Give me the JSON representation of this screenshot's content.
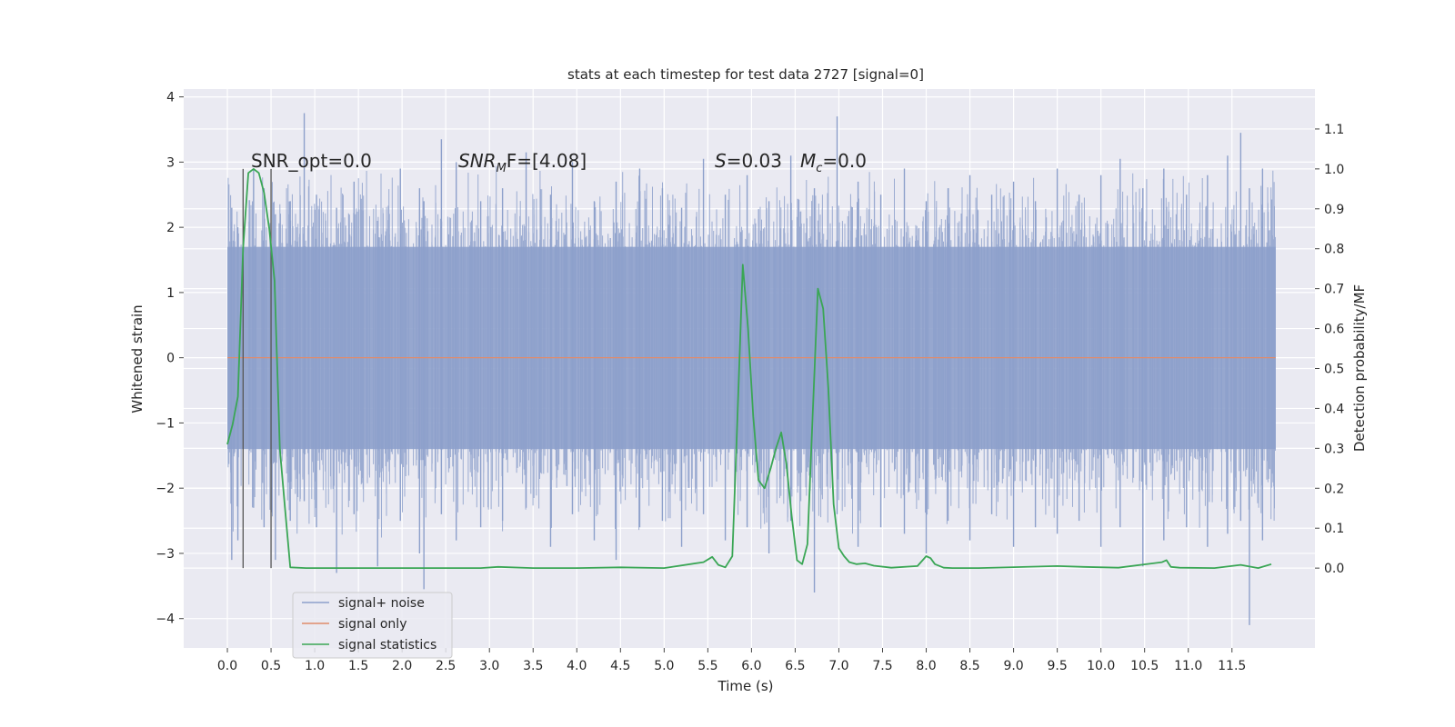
{
  "chart_data": {
    "type": "line",
    "title": "stats at each timestep for test data 2727 [signal=0]",
    "xlabel": "Time (s)",
    "ylabel": "Whitened strain",
    "ylabel_right": "Detection probability/MF",
    "xlim": [
      -0.5,
      12.45
    ],
    "ylim": [
      -4.45,
      4.12
    ],
    "ylim_right": [
      -0.2,
      1.2
    ],
    "x_ticks": [
      "0.0",
      "0.5",
      "1.0",
      "1.5",
      "2.0",
      "2.5",
      "3.0",
      "3.5",
      "4.0",
      "4.5",
      "5.0",
      "5.5",
      "6.0",
      "6.5",
      "7.0",
      "7.5",
      "8.0",
      "8.5",
      "9.0",
      "9.5",
      "10.0",
      "10.5",
      "11.0",
      "11.5"
    ],
    "y_ticks": [
      "4",
      "3",
      "2",
      "1",
      "0",
      "−1",
      "−2",
      "−3",
      "−4"
    ],
    "y_ticks_right": [
      "1.1",
      "1.0",
      "0.9",
      "0.8",
      "0.7",
      "0.6",
      "0.5",
      "0.4",
      "0.3",
      "0.2",
      "0.1",
      "0.0"
    ],
    "grid": true,
    "legend_position": "lower-left",
    "annotations": {
      "snr_opt": "SNR_opt=0.0",
      "snr_mf_main": "SNR",
      "snr_mf_sub": "M",
      "snr_mf_tail": "F=[4.08]",
      "s_main": "S",
      "s_tail": "=0.03",
      "mc_main": "M",
      "mc_sub": "c",
      "mc_tail": "=0.0"
    },
    "vertical_markers": [
      0.18,
      0.5
    ],
    "noise_band": {
      "x_start": 0.0,
      "x_end": 12.0,
      "dense_min": -1.4,
      "dense_max": 1.7
    },
    "noise_spikes": [
      {
        "x": 0.05,
        "hi": 2.3,
        "lo": -3.1
      },
      {
        "x": 0.12,
        "hi": 2.0,
        "lo": -2.8
      },
      {
        "x": 0.3,
        "hi": 2.9,
        "lo": -2.3
      },
      {
        "x": 0.42,
        "hi": 2.6,
        "lo": -2.6
      },
      {
        "x": 0.55,
        "hi": 2.2,
        "lo": -3.1
      },
      {
        "x": 0.72,
        "hi": 2.4,
        "lo": -2.5
      },
      {
        "x": 0.88,
        "hi": 3.75,
        "lo": -2.2
      },
      {
        "x": 1.02,
        "hi": 2.5,
        "lo": -2.6
      },
      {
        "x": 1.25,
        "hi": 2.3,
        "lo": -3.3
      },
      {
        "x": 1.45,
        "hi": 2.7,
        "lo": -2.4
      },
      {
        "x": 1.72,
        "hi": 2.1,
        "lo": -3.2
      },
      {
        "x": 1.98,
        "hi": 2.9,
        "lo": -2.5
      },
      {
        "x": 2.2,
        "hi": 2.6,
        "lo": -3.0
      },
      {
        "x": 2.25,
        "hi": 2.4,
        "lo": -3.55
      },
      {
        "x": 2.45,
        "hi": 3.35,
        "lo": -2.4
      },
      {
        "x": 2.62,
        "hi": 3.0,
        "lo": -2.8
      },
      {
        "x": 2.9,
        "hi": 2.4,
        "lo": -2.6
      },
      {
        "x": 3.15,
        "hi": 2.6,
        "lo": -2.5
      },
      {
        "x": 3.42,
        "hi": 3.15,
        "lo": -2.3
      },
      {
        "x": 3.7,
        "hi": 2.5,
        "lo": -2.9
      },
      {
        "x": 3.95,
        "hi": 3.0,
        "lo": -2.4
      },
      {
        "x": 4.2,
        "hi": 2.4,
        "lo": -2.8
      },
      {
        "x": 4.45,
        "hi": 2.7,
        "lo": -3.1
      },
      {
        "x": 4.72,
        "hi": 2.9,
        "lo": -2.6
      },
      {
        "x": 4.98,
        "hi": 2.6,
        "lo": -2.5
      },
      {
        "x": 5.2,
        "hi": 2.3,
        "lo": -2.9
      },
      {
        "x": 5.45,
        "hi": 3.05,
        "lo": -2.4
      },
      {
        "x": 5.7,
        "hi": 2.5,
        "lo": -2.8
      },
      {
        "x": 5.95,
        "hi": 2.8,
        "lo": -2.6
      },
      {
        "x": 6.2,
        "hi": 2.4,
        "lo": -3.0
      },
      {
        "x": 6.45,
        "hi": 3.1,
        "lo": -2.5
      },
      {
        "x": 6.72,
        "hi": 2.6,
        "lo": -3.6
      },
      {
        "x": 6.98,
        "hi": 3.7,
        "lo": -2.4
      },
      {
        "x": 7.22,
        "hi": 2.7,
        "lo": -2.9
      },
      {
        "x": 7.48,
        "hi": 2.5,
        "lo": -2.6
      },
      {
        "x": 7.75,
        "hi": 2.9,
        "lo": -2.7
      },
      {
        "x": 8.0,
        "hi": 2.4,
        "lo": -3.0
      },
      {
        "x": 8.25,
        "hi": 2.6,
        "lo": -2.5
      },
      {
        "x": 8.5,
        "hi": 2.8,
        "lo": -2.8
      },
      {
        "x": 8.75,
        "hi": 2.5,
        "lo": -2.4
      },
      {
        "x": 9.0,
        "hi": 2.7,
        "lo": -2.9
      },
      {
        "x": 9.25,
        "hi": 2.4,
        "lo": -2.6
      },
      {
        "x": 9.5,
        "hi": 2.9,
        "lo": -2.7
      },
      {
        "x": 9.75,
        "hi": 2.5,
        "lo": -2.5
      },
      {
        "x": 10.0,
        "hi": 2.8,
        "lo": -2.9
      },
      {
        "x": 10.22,
        "hi": 3.05,
        "lo": -2.6
      },
      {
        "x": 10.48,
        "hi": 2.6,
        "lo": -3.2
      },
      {
        "x": 10.72,
        "hi": 2.9,
        "lo": -2.8
      },
      {
        "x": 10.98,
        "hi": 2.5,
        "lo": -2.6
      },
      {
        "x": 11.22,
        "hi": 2.8,
        "lo": -2.9
      },
      {
        "x": 11.45,
        "hi": 3.1,
        "lo": -2.7
      },
      {
        "x": 11.6,
        "hi": 3.45,
        "lo": -2.5
      },
      {
        "x": 11.7,
        "hi": 2.6,
        "lo": -4.1
      },
      {
        "x": 11.85,
        "hi": 2.9,
        "lo": -2.8
      }
    ],
    "series": [
      {
        "name": "signal+ noise",
        "color": "#8da0cb",
        "axis": "left"
      },
      {
        "name": "signal only",
        "color": "#e08b6b",
        "axis": "left",
        "x": [
          0.0,
          12.0
        ],
        "y": [
          0.0,
          0.0
        ]
      },
      {
        "name": "signal statistics",
        "color": "#3aa655",
        "axis": "right",
        "x": [
          0.0,
          0.06,
          0.12,
          0.18,
          0.24,
          0.3,
          0.36,
          0.42,
          0.48,
          0.54,
          0.6,
          0.66,
          0.72,
          0.9,
          1.5,
          2.5,
          2.9,
          3.1,
          3.5,
          4.0,
          4.5,
          5.0,
          5.45,
          5.55,
          5.62,
          5.7,
          5.78,
          5.84,
          5.9,
          5.96,
          6.02,
          6.08,
          6.15,
          6.22,
          6.28,
          6.34,
          6.4,
          6.46,
          6.52,
          6.58,
          6.64,
          6.7,
          6.76,
          6.82,
          6.88,
          6.94,
          7.0,
          7.06,
          7.12,
          7.2,
          7.3,
          7.4,
          7.6,
          7.9,
          8.0,
          8.05,
          8.1,
          8.2,
          8.3,
          8.6,
          9.5,
          9.8,
          10.2,
          10.7,
          10.75,
          10.8,
          10.9,
          11.3,
          11.6,
          11.8,
          11.95
        ],
        "y": [
          0.31,
          0.36,
          0.43,
          0.8,
          0.99,
          1.0,
          0.99,
          0.94,
          0.85,
          0.72,
          0.3,
          0.15,
          0.002,
          0.0,
          0.0,
          0.0,
          0.0,
          0.003,
          0.0,
          0.0,
          0.002,
          0.0,
          0.015,
          0.028,
          0.008,
          0.002,
          0.03,
          0.38,
          0.76,
          0.6,
          0.38,
          0.22,
          0.2,
          0.25,
          0.3,
          0.34,
          0.26,
          0.13,
          0.02,
          0.01,
          0.06,
          0.38,
          0.7,
          0.65,
          0.45,
          0.16,
          0.05,
          0.03,
          0.015,
          0.01,
          0.012,
          0.006,
          0.001,
          0.005,
          0.03,
          0.025,
          0.01,
          0.001,
          0.0,
          0.0,
          0.005,
          0.003,
          0.001,
          0.015,
          0.02,
          0.003,
          0.001,
          0.0,
          0.008,
          0.0,
          0.01
        ]
      }
    ]
  }
}
